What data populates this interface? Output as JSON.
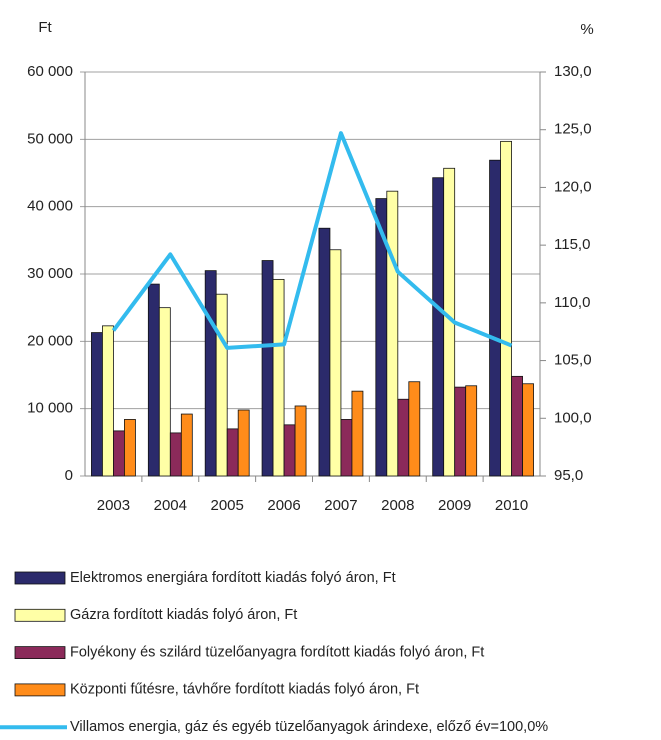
{
  "chart_data": {
    "type": "bar",
    "y_label": "Ft",
    "y2_label": "%",
    "categories": [
      "2003",
      "2004",
      "2005",
      "2006",
      "2007",
      "2008",
      "2009",
      "2010"
    ],
    "series": [
      {
        "name": "Elektromos energiára fordított kiadás folyó áron, Ft",
        "color": "#2b2a6b",
        "values": [
          21300,
          28500,
          30500,
          32000,
          36800,
          41200,
          44300,
          46900
        ]
      },
      {
        "name": "Gázra fordított kiadás folyó áron, Ft",
        "color": "#ffffa6",
        "values": [
          22300,
          25000,
          27000,
          29200,
          33600,
          42300,
          45700,
          49700
        ]
      },
      {
        "name": "Folyékony és szilárd tüzelőanyagra fordított kiadás folyó áron, Ft",
        "color": "#8b2a5a",
        "values": [
          6700,
          6400,
          7000,
          7600,
          8400,
          11400,
          13200,
          14800
        ]
      },
      {
        "name": "Központi fűtésre, távhőre fordított kiadás folyó áron, Ft",
        "color": "#ff8c1a",
        "values": [
          8400,
          9200,
          9800,
          10400,
          12600,
          14000,
          13400,
          13700
        ]
      },
      {
        "name": "Villamos energia, gáz és egyéb tüzelőanyagok árindexe, előző év=100,0%",
        "color": "#33bbee",
        "type": "line",
        "axis": "y2",
        "values": [
          107.6,
          114.2,
          106.1,
          106.4,
          124.7,
          112.7,
          108.3,
          106.3
        ]
      }
    ],
    "ylim": [
      0,
      60000
    ],
    "yticks": [
      0,
      {
        "value": 10000,
        "label": "10 000"
      },
      {
        "value": 20000,
        "label": "20 000"
      },
      {
        "value": 30000,
        "label": "30 000"
      },
      {
        "value": 40000,
        "label": "40 000"
      },
      {
        "value": 50000,
        "label": "50 000"
      },
      {
        "value": 60000,
        "label": "60 000"
      }
    ],
    "y2lim": [
      95,
      130
    ],
    "y2ticks": [
      {
        "value": 95,
        "label": "95,0"
      },
      {
        "value": 100,
        "label": "100,0"
      },
      {
        "value": 105,
        "label": "105,0"
      },
      {
        "value": 110,
        "label": "110,0"
      },
      {
        "value": 115,
        "label": "115,0"
      },
      {
        "value": 120,
        "label": "120,0"
      },
      {
        "value": 125,
        "label": "125,0"
      },
      {
        "value": 130,
        "label": "130,0"
      }
    ],
    "grid": true,
    "legend": "bottom"
  }
}
